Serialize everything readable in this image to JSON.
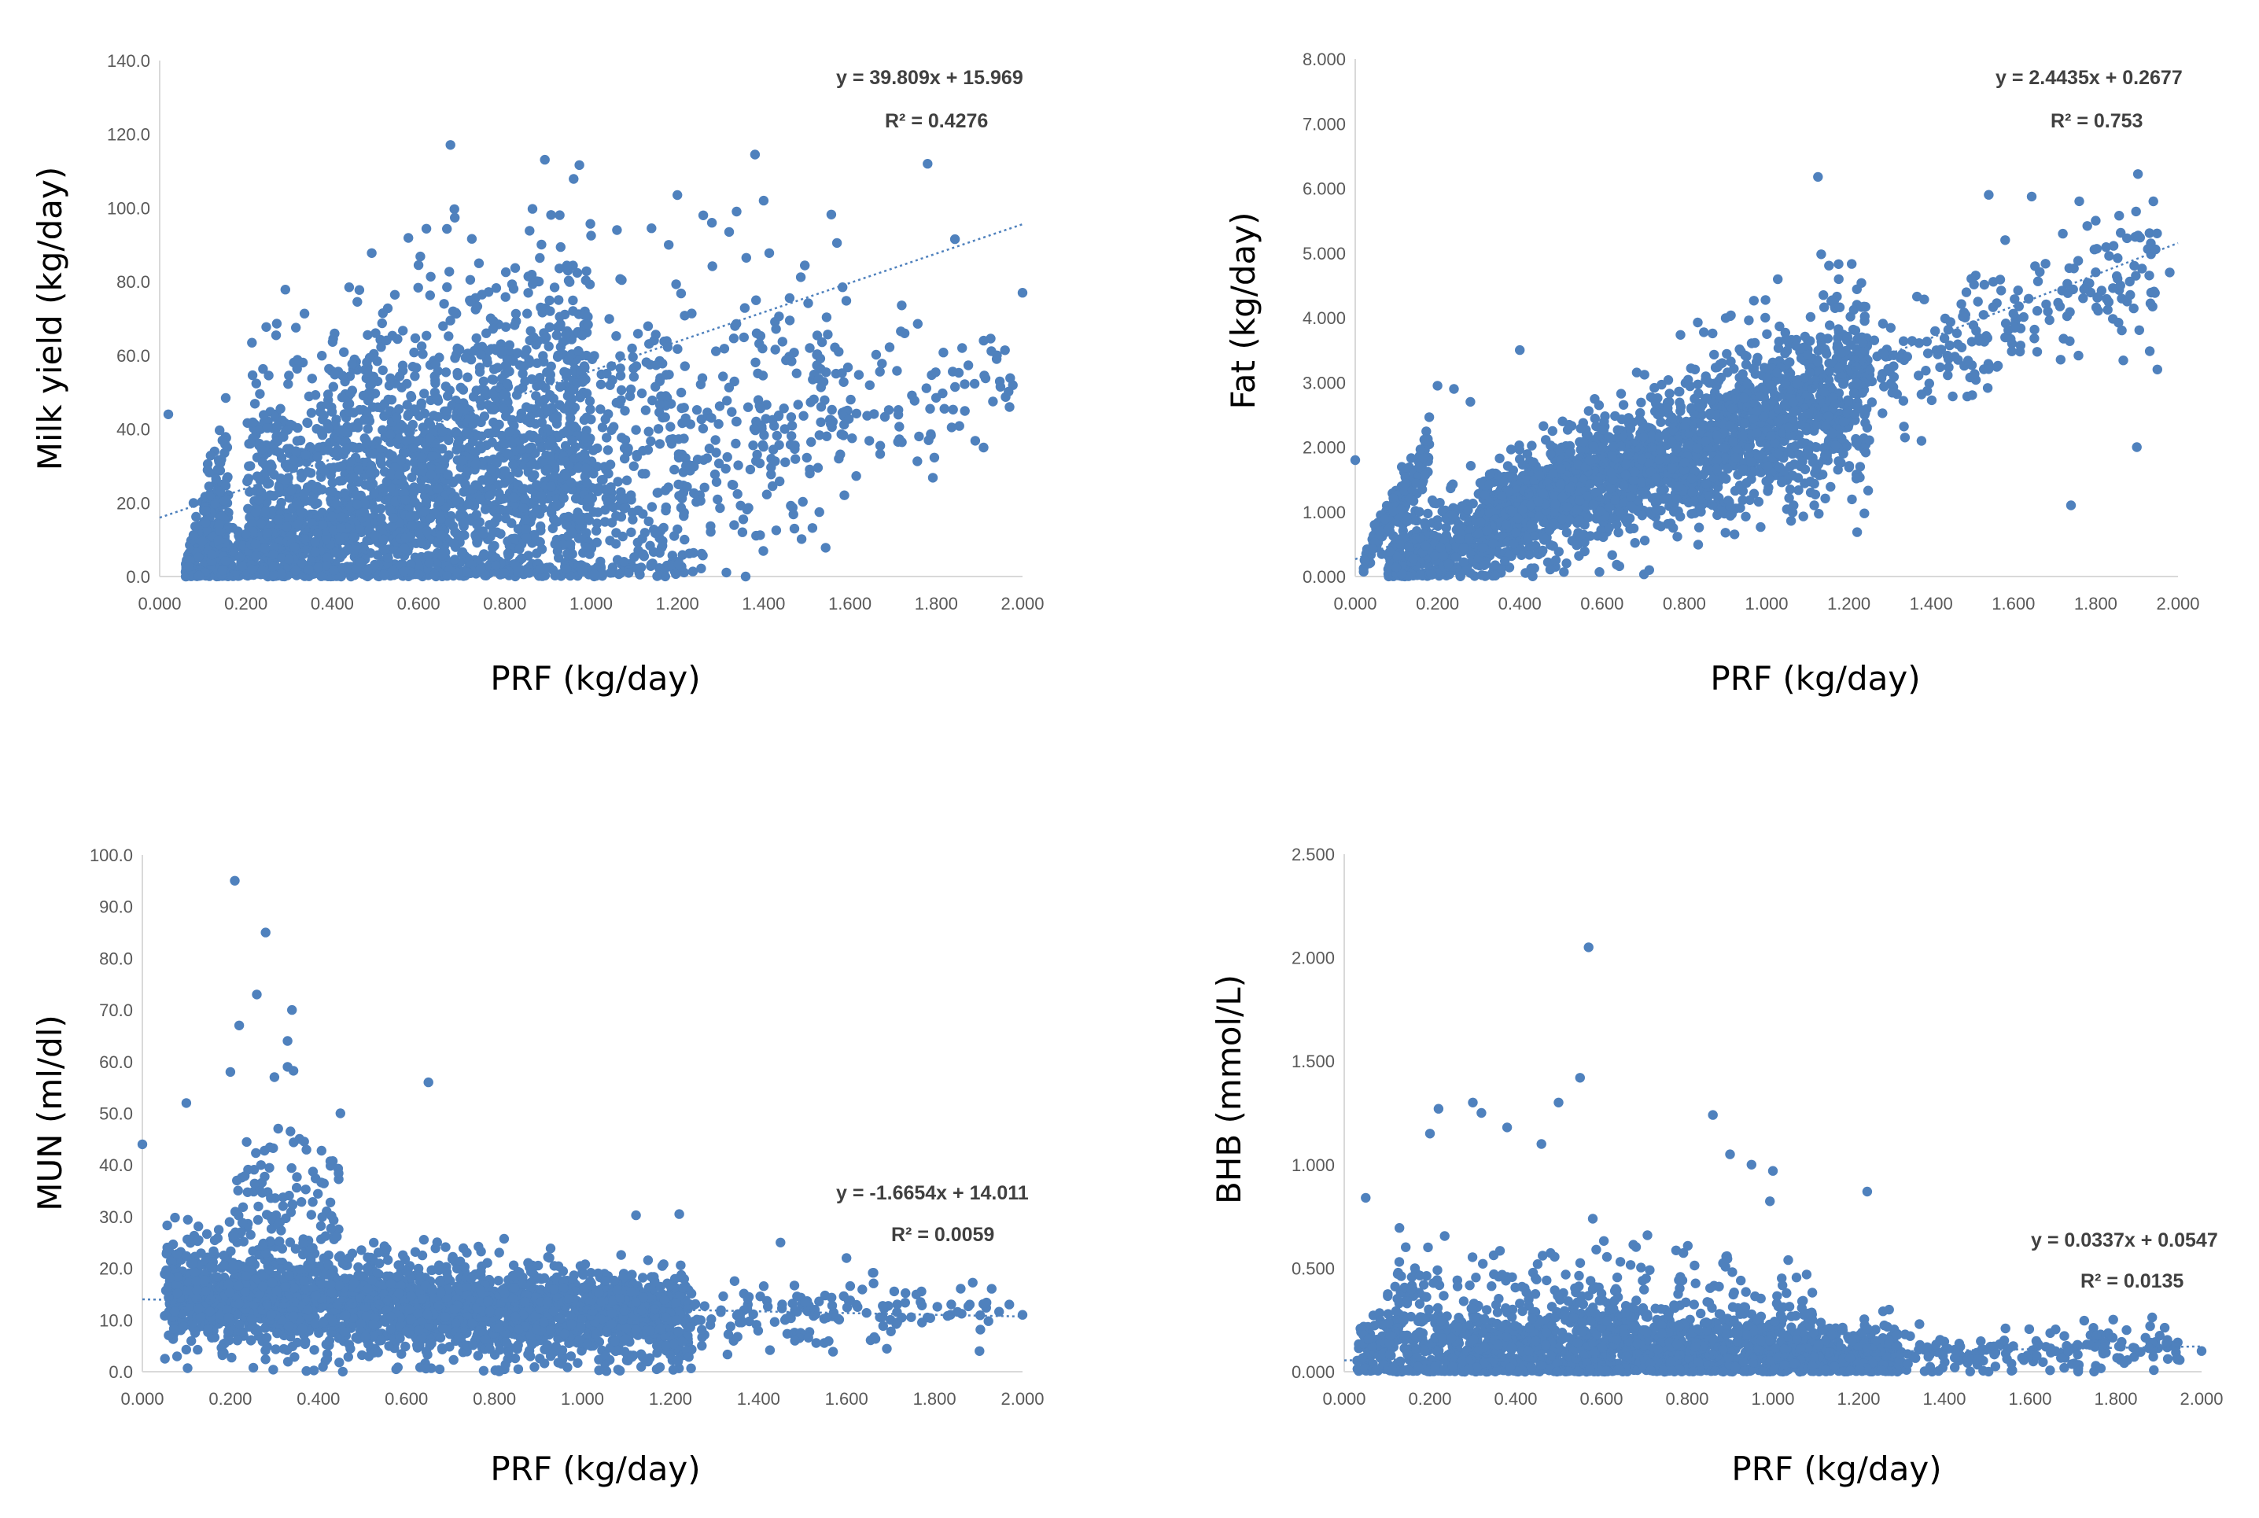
{
  "style": {
    "point_color": "#4f81bd",
    "trend_color": "#4f81bd",
    "axis_color": "#d9d9d9",
    "tick_color": "#595959"
  },
  "chart_data": [
    {
      "type": "scatter",
      "xlabel": "PRF (kg/day)",
      "ylabel": "Milk yield (kg/day)",
      "xlim": [
        0,
        2
      ],
      "ylim": [
        0,
        140
      ],
      "x_ticks": [
        "0.000",
        "0.200",
        "0.400",
        "0.600",
        "0.800",
        "1.000",
        "1.200",
        "1.400",
        "1.600",
        "1.800",
        "2.000"
      ],
      "y_ticks": [
        "0.0",
        "20.0",
        "40.0",
        "60.0",
        "80.0",
        "100.0",
        "120.0",
        "140.0"
      ],
      "trendline": {
        "slope": 39.809,
        "intercept": 15.969,
        "equation": "y = 39.809x + 15.969",
        "r2": "R² = 0.4276"
      },
      "outliers": [
        [
          1.38,
          114.5
        ],
        [
          1.4,
          102
        ],
        [
          1.2,
          103.5
        ],
        [
          1.78,
          112
        ],
        [
          1.57,
          90.5
        ],
        [
          1.32,
          93.5
        ],
        [
          1.26,
          98
        ],
        [
          1.28,
          96
        ],
        [
          1.14,
          94.5
        ],
        [
          1.18,
          90
        ],
        [
          1.06,
          94
        ],
        [
          1.0,
          92.5
        ],
        [
          2.0,
          77
        ],
        [
          0.6,
          84.5
        ],
        [
          0.74,
          85
        ],
        [
          0.72,
          80.5
        ],
        [
          1.86,
          62
        ],
        [
          1.91,
          64
        ],
        [
          1.94,
          59
        ],
        [
          1.97,
          46
        ],
        [
          1.76,
          38
        ],
        [
          1.45,
          31
        ],
        [
          1.22,
          30
        ],
        [
          0.02,
          44
        ]
      ],
      "clouds": [
        {
          "x": [
            0.13,
            1.22
          ],
          "c": [
            4,
            28
          ],
          "s": [
            4,
            26
          ],
          "n": 1300
        },
        {
          "x": [
            0.2,
            1.0
          ],
          "c": [
            20,
            40
          ],
          "s": [
            18,
            28
          ],
          "n": 1500
        },
        {
          "x": [
            0.06,
            0.16
          ],
          "c": [
            1,
            22
          ],
          "s": [
            2,
            14
          ],
          "n": 300
        },
        {
          "x": [
            1.2,
            1.6
          ],
          "c": [
            28,
            56
          ],
          "s": [
            20,
            18
          ],
          "n": 220
        },
        {
          "x": [
            1.6,
            1.98
          ],
          "c": [
            42,
            56
          ],
          "s": [
            12,
            10
          ],
          "n": 70
        }
      ]
    },
    {
      "type": "scatter",
      "xlabel": "PRF (kg/day)",
      "ylabel": "Fat (kg/day)",
      "xlim": [
        0,
        2
      ],
      "ylim": [
        0,
        8
      ],
      "x_ticks": [
        "0.000",
        "0.200",
        "0.400",
        "0.600",
        "0.800",
        "1.000",
        "1.200",
        "1.400",
        "1.600",
        "1.800",
        "2.000"
      ],
      "y_ticks": [
        "0.000",
        "1.000",
        "2.000",
        "3.000",
        "4.000",
        "5.000",
        "6.000",
        "7.000",
        "8.000"
      ],
      "trendline": {
        "slope": 2.4435,
        "intercept": 0.2677,
        "equation": "y = 2.4435x + 0.2677",
        "r2": "R² = 0.753"
      },
      "outliers": [
        [
          0.4,
          3.5
        ],
        [
          0.2,
          2.95
        ],
        [
          0.24,
          2.9
        ],
        [
          0.28,
          2.7
        ],
        [
          0.0,
          1.8
        ],
        [
          1.54,
          5.9
        ],
        [
          1.76,
          5.8
        ],
        [
          1.8,
          5.5
        ],
        [
          1.72,
          5.3
        ],
        [
          1.74,
          1.1
        ],
        [
          1.9,
          2.0
        ],
        [
          1.98,
          4.7
        ],
        [
          1.95,
          3.2
        ],
        [
          1.58,
          5.2
        ],
        [
          1.86,
          4.5
        ]
      ],
      "clouds": [
        {
          "x": [
            0.08,
            1.25
          ],
          "c": [
            0.1,
            3.1
          ],
          "s": [
            0.32,
            0.85
          ],
          "n": 1600
        },
        {
          "x": [
            0.3,
            1.2
          ],
          "c": [
            1.0,
            2.6
          ],
          "s": [
            0.3,
            0.5
          ],
          "n": 900
        },
        {
          "x": [
            0.02,
            0.18
          ],
          "c": [
            0.2,
            2.0
          ],
          "s": [
            0.1,
            0.22
          ],
          "n": 160
        },
        {
          "x": [
            1.2,
            1.95
          ],
          "c": [
            2.9,
            4.8
          ],
          "s": [
            0.4,
            0.6
          ],
          "n": 240
        }
      ]
    },
    {
      "type": "scatter",
      "xlabel": "PRF (kg/day)",
      "ylabel": "MUN (ml/dl)",
      "xlim": [
        0,
        2
      ],
      "ylim": [
        0,
        100
      ],
      "x_ticks": [
        "0.000",
        "0.200",
        "0.400",
        "0.600",
        "0.800",
        "1.000",
        "1.200",
        "1.400",
        "1.600",
        "1.800",
        "2.000"
      ],
      "y_ticks": [
        "0.0",
        "10.0",
        "20.0",
        "30.0",
        "40.0",
        "50.0",
        "60.0",
        "70.0",
        "80.0",
        "90.0",
        "100.0"
      ],
      "trendline": {
        "slope": -1.6654,
        "intercept": 14.011,
        "equation": "y = -1.6654x + 14.011",
        "r2": "R² = 0.0059"
      },
      "outliers": [
        [
          0.21,
          95
        ],
        [
          0.28,
          85
        ],
        [
          0.26,
          73
        ],
        [
          0.34,
          70
        ],
        [
          0.22,
          67
        ],
        [
          0.33,
          64
        ],
        [
          0.3,
          57
        ],
        [
          0.2,
          58
        ],
        [
          0.65,
          56
        ],
        [
          0.33,
          59
        ],
        [
          0.45,
          50
        ],
        [
          0.1,
          52
        ],
        [
          0.0,
          44
        ],
        [
          1.22,
          30.5
        ],
        [
          1.45,
          25
        ],
        [
          1.6,
          22
        ],
        [
          1.88,
          13
        ],
        [
          1.97,
          13
        ],
        [
          2.0,
          11
        ]
      ],
      "clouds": [
        {
          "x": [
            0.05,
            1.25
          ],
          "c": [
            15,
            10
          ],
          "s": [
            5.5,
            4.5
          ],
          "n": 1700
        },
        {
          "x": [
            0.05,
            1.2
          ],
          "c": [
            14,
            11
          ],
          "s": [
            3,
            3
          ],
          "n": 900
        },
        {
          "x": [
            0.2,
            0.45
          ],
          "c": [
            30,
            30
          ],
          "s": [
            9,
            9
          ],
          "n": 120
        },
        {
          "x": [
            1.2,
            1.95
          ],
          "c": [
            11,
            12
          ],
          "s": [
            3,
            3
          ],
          "n": 160
        }
      ]
    },
    {
      "type": "scatter",
      "xlabel": "PRF (kg/day)",
      "ylabel": "BHB (mmol/L)",
      "xlim": [
        0,
        2
      ],
      "ylim": [
        0,
        2.5
      ],
      "x_ticks": [
        "0.000",
        "0.200",
        "0.400",
        "0.600",
        "0.800",
        "1.000",
        "1.200",
        "1.400",
        "1.600",
        "1.800",
        "2.000"
      ],
      "y_ticks": [
        "0.000",
        "0.500",
        "1.000",
        "1.500",
        "2.000",
        "2.500"
      ],
      "trendline": {
        "slope": 0.0337,
        "intercept": 0.0547,
        "equation": "y = 0.0337x + 0.0547",
        "r2": "R² = 0.0135"
      },
      "outliers": [
        [
          0.57,
          2.05
        ],
        [
          0.55,
          1.42
        ],
        [
          0.3,
          1.3
        ],
        [
          0.32,
          1.25
        ],
        [
          0.22,
          1.27
        ],
        [
          0.5,
          1.3
        ],
        [
          0.38,
          1.18
        ],
        [
          0.86,
          1.24
        ],
        [
          0.2,
          1.15
        ],
        [
          0.46,
          1.1
        ],
        [
          1.0,
          0.97
        ],
        [
          1.22,
          0.87
        ],
        [
          0.95,
          1.0
        ],
        [
          0.9,
          1.05
        ],
        [
          0.05,
          0.84
        ],
        [
          1.88,
          0.22
        ],
        [
          1.94,
          0.12
        ],
        [
          2.0,
          0.1
        ]
      ],
      "clouds": [
        {
          "x": [
            0.03,
            1.3
          ],
          "c": [
            0.1,
            0.08
          ],
          "s": [
            0.1,
            0.08
          ],
          "n": 1500
        },
        {
          "x": [
            0.1,
            1.1
          ],
          "c": [
            0.25,
            0.2
          ],
          "s": [
            0.18,
            0.14
          ],
          "n": 500
        },
        {
          "x": [
            1.3,
            1.95
          ],
          "c": [
            0.08,
            0.1
          ],
          "s": [
            0.06,
            0.06
          ],
          "n": 170
        }
      ]
    }
  ]
}
